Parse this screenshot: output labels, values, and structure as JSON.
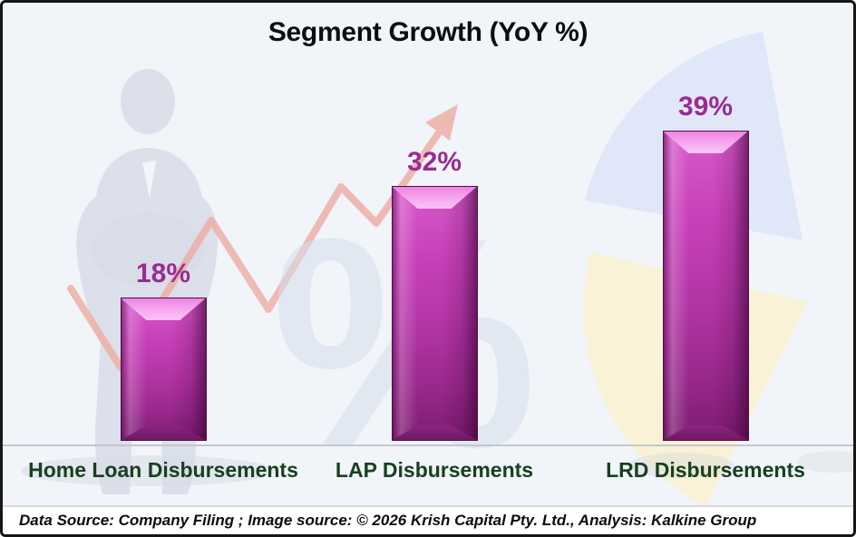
{
  "title": "Segment Growth (YoY %)",
  "chart_data": {
    "type": "bar",
    "title": "Segment Growth (YoY %)",
    "categories": [
      "Home Loan Disbursements",
      "LAP Disbursements",
      "LRD Disbursements"
    ],
    "values": [
      18,
      32,
      39
    ],
    "value_labels": [
      "18%",
      "32%",
      "39%"
    ],
    "unit": "%",
    "ylim": [
      0,
      44
    ],
    "gridlines": false,
    "legend": false,
    "bar_orientation": "vertical"
  },
  "footer": {
    "text": "Data Source: Company Filing ; Image source: © 2026 Krish Capital Pty. Ltd., Analysis: Kalkine Group"
  },
  "colors": {
    "background": "#f1f4f9",
    "bar_highlight": "#f7aef0",
    "bar_mid": "#c840ba",
    "bar_dark": "#7b1c6f",
    "value_label": "#9a2c91",
    "category_label": "#17411f",
    "title_text": "#0d0d0d",
    "footer_text": "#0c0c0c",
    "axis_line": "#c3c7d0",
    "arrow": "#eeaba2",
    "watermark": "#d5dfec",
    "pie_blue": "#d9e3f7",
    "pie_yellow": "#faf2d2",
    "silhouette": "#d7dce8"
  },
  "decor": {
    "watermark_symbol": "%"
  }
}
